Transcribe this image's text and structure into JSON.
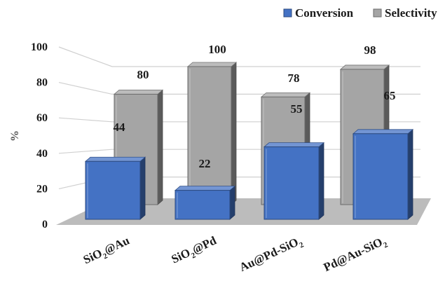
{
  "chart_data": {
    "type": "bar",
    "categories": [
      {
        "main": "SiO",
        "sub": "2",
        "tail": "@Au"
      },
      {
        "main": "SiO",
        "sub": "2",
        "tail": "@Pd"
      },
      {
        "main": "Au@Pd-SiO",
        "sub": "2",
        "tail": ""
      },
      {
        "main": "Pd@Au-SiO",
        "sub": "2",
        "tail": ""
      }
    ],
    "series": [
      {
        "name": "Conversion",
        "values": [
          44,
          22,
          55,
          65
        ],
        "color": "#4472C4"
      },
      {
        "name": "Selectivity",
        "values": [
          80,
          100,
          78,
          98
        ],
        "color": "#A5A5A5"
      }
    ],
    "ylabel": "%",
    "ylim": [
      0,
      100
    ],
    "yticks": [
      0,
      20,
      40,
      60,
      80,
      100
    ],
    "legend_position": "top-right",
    "grid": true,
    "view": "3d"
  }
}
